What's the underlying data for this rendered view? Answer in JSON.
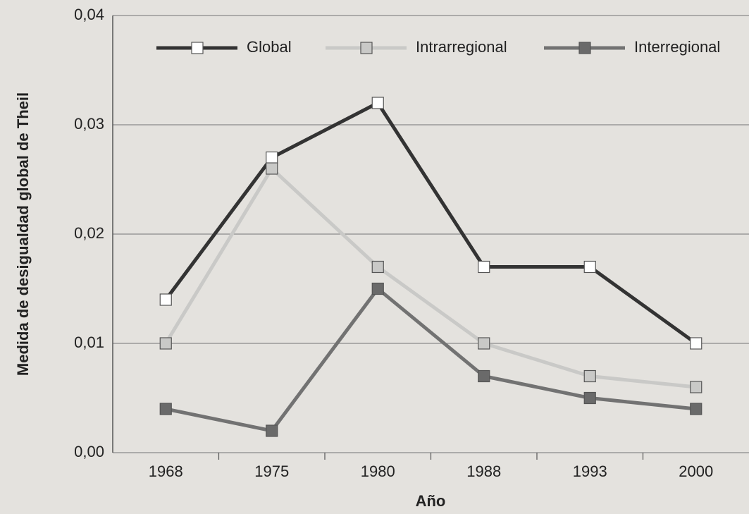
{
  "chart_data": {
    "type": "line",
    "x_label": "Año",
    "y_label": "Medida de desigualdad global de Theil",
    "categories": [
      "1968",
      "1975",
      "1980",
      "1988",
      "1993",
      "2000"
    ],
    "series": [
      {
        "name": "Global",
        "color": "#333333",
        "marker_fill": "#ffffff",
        "values": [
          0.014,
          0.027,
          0.032,
          0.017,
          0.017,
          0.01
        ]
      },
      {
        "name": "Intrarregional",
        "color": "#c9c9c7",
        "marker_fill": "#c9c9c7",
        "values": [
          0.01,
          0.026,
          0.017,
          0.01,
          0.007,
          0.006
        ]
      },
      {
        "name": "Interregional",
        "color": "#727272",
        "marker_fill": "#6a6a6a",
        "values": [
          0.004,
          0.002,
          0.015,
          0.007,
          0.005,
          0.004
        ]
      }
    ],
    "ylim": [
      0,
      0.04
    ],
    "yticks": [
      {
        "value": 0,
        "label": "0,00"
      },
      {
        "value": 0.01,
        "label": "0,01"
      },
      {
        "value": 0.02,
        "label": "0,02"
      },
      {
        "value": 0.03,
        "label": "0,03"
      },
      {
        "value": 0.04,
        "label": "0,04"
      }
    ],
    "grid": true,
    "legend": "top"
  }
}
